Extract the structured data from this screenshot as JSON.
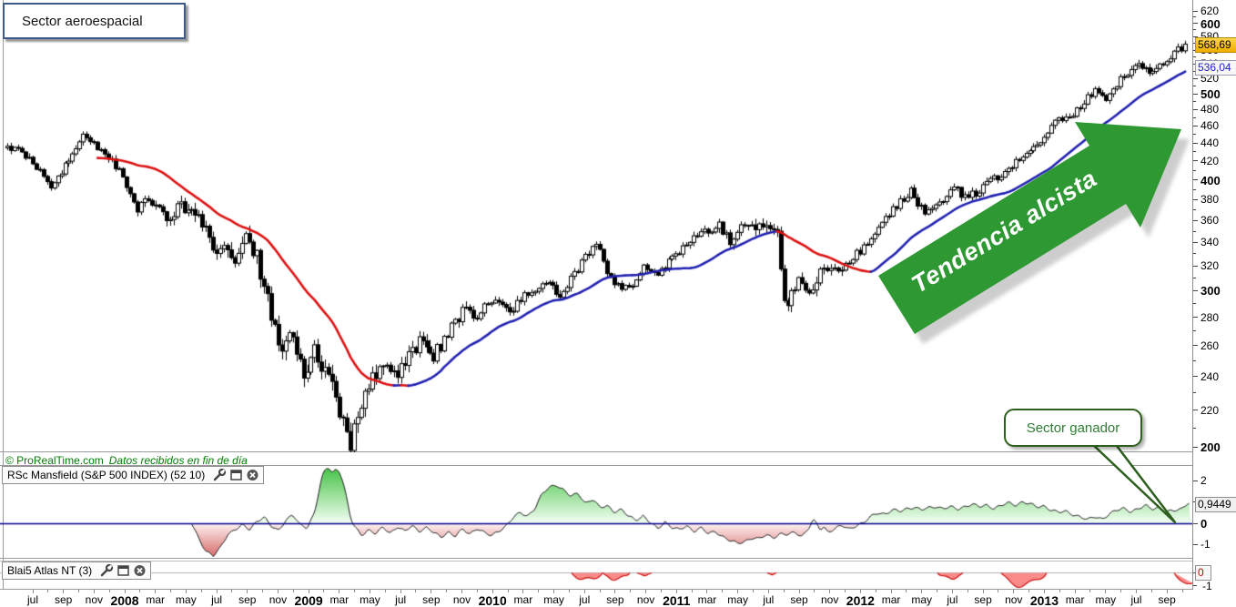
{
  "title_box": {
    "label": "Sector aeroespacial"
  },
  "annotations": {
    "trend_arrow_label": "Tendencia alcista",
    "callout_label": "Sector ganador"
  },
  "copyright": {
    "brand": "© ProRealTime.com",
    "note": "Datos recibidos en fin de día"
  },
  "price_labels": {
    "last": "568,69",
    "ma": "536,04"
  },
  "panels": {
    "rsc": {
      "title": "RSc Mansfield (S&P 500 INDEX) (52 10)",
      "value_label": "0,9449",
      "axis": [
        {
          "label": "2",
          "value": 2
        },
        {
          "label": "0",
          "value": 0,
          "bold": true
        },
        {
          "label": "-1",
          "value": -1
        }
      ],
      "minor_tick_values": [
        1
      ]
    },
    "atlas": {
      "title": "Blai5 Atlas NT (3)",
      "value_label": "0",
      "partial_tick_label": "-1"
    }
  },
  "x_axis": {
    "labels": [
      "jul",
      "sep",
      "nov",
      "2008",
      "mar",
      "may",
      "jul",
      "sep",
      "nov",
      "2009",
      "mar",
      "may",
      "jul",
      "sep",
      "nov",
      "2010",
      "mar",
      "may",
      "jul",
      "sep",
      "nov",
      "2011",
      "mar",
      "may",
      "jul",
      "sep",
      "nov",
      "2012",
      "mar",
      "may",
      "jul",
      "sep",
      "nov",
      "2013",
      "mar",
      "may",
      "jul",
      "sep"
    ]
  },
  "colors": {
    "arrow_green": "#2e9933",
    "ma_up": "#2121b2",
    "ma_down": "#dd1111",
    "zero_line": "#00008b",
    "candle_outline": "#000000",
    "indicator_pos_top": "#4fc64f",
    "indicator_pos_base": "#f4fef4",
    "indicator_neg_base": "#fdf2f2",
    "indicator_neg_deep": "#d96a6a",
    "atlas_fill": "#f98b8b",
    "atlas_border": "#cc1111",
    "copyright_green": "#007d00"
  },
  "chart_data": {
    "type": "candlestick",
    "main": {
      "scale": "log",
      "ylim": [
        200,
        620
      ],
      "y_label_step": 20,
      "y_tick_step": 10,
      "weeks": 327,
      "last_price": 568.69,
      "ma_value": 536.04,
      "ma_period": 26,
      "price_anchors": [
        [
          0,
          437
        ],
        [
          6,
          424
        ],
        [
          12,
          392
        ],
        [
          16,
          415
        ],
        [
          21,
          449
        ],
        [
          24,
          440
        ],
        [
          28,
          427
        ],
        [
          32,
          400
        ],
        [
          36,
          372
        ],
        [
          40,
          380
        ],
        [
          44,
          360
        ],
        [
          48,
          376
        ],
        [
          52,
          366
        ],
        [
          57,
          338
        ],
        [
          63,
          328
        ],
        [
          66,
          346
        ],
        [
          69,
          330
        ],
        [
          71,
          302
        ],
        [
          74,
          268
        ],
        [
          76,
          254
        ],
        [
          79,
          272
        ],
        [
          82,
          236
        ],
        [
          85,
          260
        ],
        [
          88,
          242
        ],
        [
          91,
          226
        ],
        [
          93,
          212
        ],
        [
          95,
          202
        ],
        [
          97,
          220
        ],
        [
          99,
          231
        ],
        [
          103,
          246
        ],
        [
          106,
          240
        ],
        [
          110,
          248
        ],
        [
          114,
          261
        ],
        [
          118,
          252
        ],
        [
          122,
          269
        ],
        [
          127,
          287
        ],
        [
          130,
          278
        ],
        [
          134,
          294
        ],
        [
          139,
          284
        ],
        [
          144,
          298
        ],
        [
          149,
          309
        ],
        [
          153,
          294
        ],
        [
          159,
          323
        ],
        [
          163,
          339
        ],
        [
          167,
          309
        ],
        [
          172,
          300
        ],
        [
          176,
          319
        ],
        [
          180,
          312
        ],
        [
          185,
          330
        ],
        [
          190,
          343
        ],
        [
          193,
          351
        ],
        [
          197,
          355
        ],
        [
          200,
          339
        ],
        [
          204,
          355
        ],
        [
          207,
          350
        ],
        [
          211,
          357
        ],
        [
          213,
          352
        ],
        [
          215,
          287
        ],
        [
          217,
          300
        ],
        [
          219,
          310
        ],
        [
          222,
          294
        ],
        [
          226,
          323
        ],
        [
          230,
          314
        ],
        [
          234,
          327
        ],
        [
          238,
          339
        ],
        [
          243,
          362
        ],
        [
          246,
          374
        ],
        [
          250,
          388
        ],
        [
          254,
          366
        ],
        [
          258,
          374
        ],
        [
          262,
          392
        ],
        [
          265,
          382
        ],
        [
          269,
          388
        ],
        [
          273,
          401
        ],
        [
          277,
          411
        ],
        [
          280,
          422
        ],
        [
          285,
          437
        ],
        [
          290,
          467
        ],
        [
          296,
          478
        ],
        [
          301,
          507
        ],
        [
          304,
          490
        ],
        [
          308,
          519
        ],
        [
          313,
          538
        ],
        [
          317,
          526
        ],
        [
          322,
          551
        ],
        [
          326,
          568.69
        ]
      ]
    },
    "rsc_mansfield": {
      "type": "area",
      "ylim": [
        -1.6,
        2.65
      ],
      "start_week": 51,
      "last_value": 0.9449,
      "anchors": [
        [
          51,
          0
        ],
        [
          53,
          -0.7
        ],
        [
          55,
          -1.3
        ],
        [
          57,
          -1.55
        ],
        [
          59,
          -1.15
        ],
        [
          61,
          -0.5
        ],
        [
          63,
          -0.3
        ],
        [
          65,
          -0.1
        ],
        [
          67,
          -0.3
        ],
        [
          69,
          0.1
        ],
        [
          71,
          0.3
        ],
        [
          73,
          -0.15
        ],
        [
          75,
          -0.35
        ],
        [
          77,
          0.15
        ],
        [
          79,
          0.4
        ],
        [
          81,
          -0.1
        ],
        [
          83,
          -0.2
        ],
        [
          85,
          0.5
        ],
        [
          86,
          1.3
        ],
        [
          87,
          2.1
        ],
        [
          88,
          2.5
        ],
        [
          89,
          2.62
        ],
        [
          90,
          2.35
        ],
        [
          91,
          2.55
        ],
        [
          92,
          2.45
        ],
        [
          93,
          1.9
        ],
        [
          94,
          1.1
        ],
        [
          95,
          0.25
        ],
        [
          96,
          -0.15
        ],
        [
          98,
          -0.55
        ],
        [
          100,
          -0.3
        ],
        [
          102,
          -0.5
        ],
        [
          104,
          -0.2
        ],
        [
          106,
          -0.45
        ],
        [
          108,
          -0.15
        ],
        [
          110,
          -0.4
        ],
        [
          112,
          -0.12
        ],
        [
          114,
          -0.35
        ],
        [
          116,
          -0.2
        ],
        [
          118,
          -0.45
        ],
        [
          120,
          -0.65
        ],
        [
          122,
          -0.4
        ],
        [
          124,
          -0.6
        ],
        [
          126,
          -0.3
        ],
        [
          128,
          -0.5
        ],
        [
          130,
          -0.22
        ],
        [
          132,
          -0.45
        ],
        [
          134,
          -0.6
        ],
        [
          136,
          -0.35
        ],
        [
          138,
          -0.12
        ],
        [
          140,
          0.25
        ],
        [
          142,
          0.5
        ],
        [
          144,
          0.35
        ],
        [
          146,
          0.7
        ],
        [
          148,
          1.35
        ],
        [
          150,
          1.7
        ],
        [
          152,
          1.82
        ],
        [
          154,
          1.55
        ],
        [
          156,
          1.25
        ],
        [
          158,
          1.42
        ],
        [
          160,
          0.95
        ],
        [
          162,
          1.12
        ],
        [
          164,
          0.72
        ],
        [
          166,
          0.85
        ],
        [
          168,
          0.55
        ],
        [
          170,
          0.62
        ],
        [
          172,
          0.32
        ],
        [
          174,
          0.18
        ],
        [
          176,
          0.35
        ],
        [
          178,
          0
        ],
        [
          180,
          -0.25
        ],
        [
          182,
          0.08
        ],
        [
          184,
          -0.2
        ],
        [
          186,
          -0.32
        ],
        [
          188,
          -0.12
        ],
        [
          190,
          -0.35
        ],
        [
          192,
          -0.22
        ],
        [
          194,
          -0.5
        ],
        [
          196,
          -0.38
        ],
        [
          198,
          -0.62
        ],
        [
          200,
          -0.82
        ],
        [
          202,
          -0.95
        ],
        [
          204,
          -0.85
        ],
        [
          206,
          -0.68
        ],
        [
          208,
          -0.75
        ],
        [
          210,
          -0.55
        ],
        [
          212,
          -0.65
        ],
        [
          214,
          -0.5
        ],
        [
          216,
          -0.55
        ],
        [
          218,
          -0.42
        ],
        [
          220,
          -0.6
        ],
        [
          222,
          -0.18
        ],
        [
          223,
          0.15
        ],
        [
          224,
          -0.05
        ],
        [
          225,
          -0.3
        ],
        [
          226,
          -0.15
        ],
        [
          227,
          -0.4
        ],
        [
          229,
          -0.25
        ],
        [
          231,
          -0.12
        ],
        [
          233,
          -0.28
        ],
        [
          235,
          -0.08
        ],
        [
          237,
          0.02
        ],
        [
          239,
          0.3
        ],
        [
          241,
          0.5
        ],
        [
          243,
          0.45
        ],
        [
          245,
          0.62
        ],
        [
          247,
          0.55
        ],
        [
          249,
          0.7
        ],
        [
          251,
          0.76
        ],
        [
          253,
          0.62
        ],
        [
          255,
          0.72
        ],
        [
          257,
          0.8
        ],
        [
          259,
          0.7
        ],
        [
          261,
          0.76
        ],
        [
          263,
          0.66
        ],
        [
          265,
          0.8
        ],
        [
          267,
          0.9
        ],
        [
          269,
          0.76
        ],
        [
          271,
          0.86
        ],
        [
          273,
          0.72
        ],
        [
          275,
          0.82
        ],
        [
          277,
          0.95
        ],
        [
          279,
          0.86
        ],
        [
          281,
          1.02
        ],
        [
          283,
          0.9
        ],
        [
          285,
          0.76
        ],
        [
          287,
          0.82
        ],
        [
          289,
          0.62
        ],
        [
          291,
          0.5
        ],
        [
          293,
          0.56
        ],
        [
          295,
          0.42
        ],
        [
          297,
          0.3
        ],
        [
          299,
          0.15
        ],
        [
          301,
          0.32
        ],
        [
          303,
          0.22
        ],
        [
          305,
          0.42
        ],
        [
          307,
          0.6
        ],
        [
          309,
          0.72
        ],
        [
          311,
          0.56
        ],
        [
          313,
          0.66
        ],
        [
          315,
          0.82
        ],
        [
          317,
          0.7
        ],
        [
          319,
          0.76
        ],
        [
          321,
          0.52
        ],
        [
          323,
          0.6
        ],
        [
          325,
          0.7
        ],
        [
          326.5,
          0.9449
        ]
      ]
    },
    "atlas_nt": {
      "type": "area",
      "visible_negative_blobs": [
        [
          628,
          662,
          9,
          0
        ],
        [
          662,
          692,
          8,
          0
        ],
        [
          700,
          716,
          3,
          0
        ],
        [
          843,
          853,
          2,
          0
        ],
        [
          1030,
          1058,
          7,
          0
        ],
        [
          1100,
          1150,
          16,
          0
        ],
        [
          1290,
          1310,
          12,
          1
        ]
      ]
    }
  }
}
